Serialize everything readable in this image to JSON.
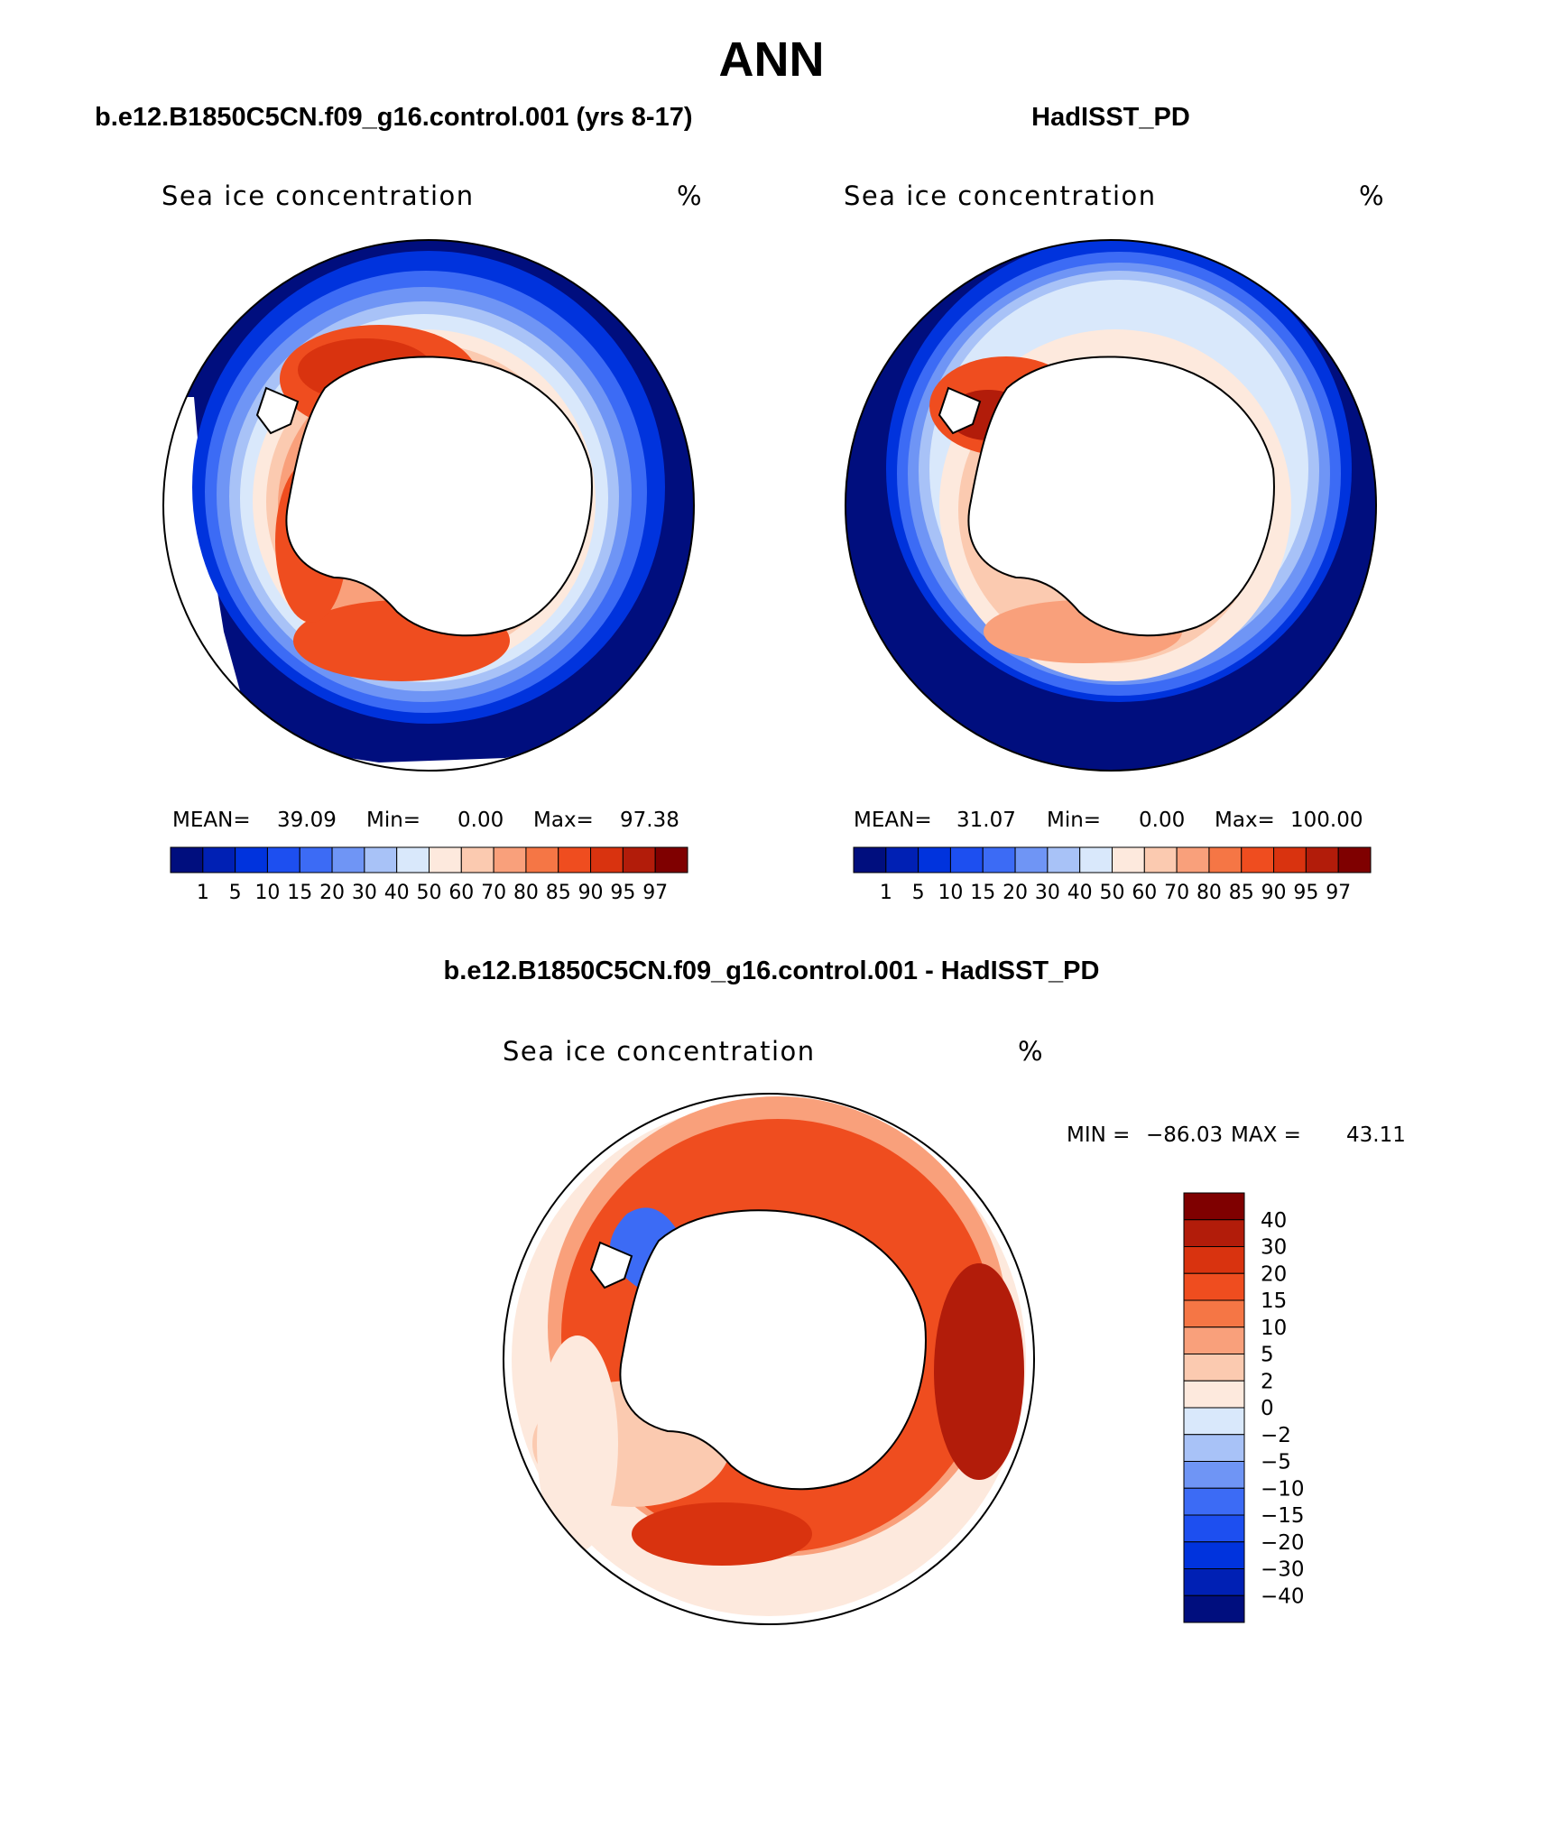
{
  "page_title": "ANN",
  "panels": [
    {
      "id": "model",
      "header": "b.e12.B1850C5CN.f09_g16.control.001 (yrs 8-17)",
      "plot_title": "Sea ice concentration",
      "units": "%",
      "stats": {
        "mean_label": "MEAN=",
        "mean": "39.09",
        "min_label": "Min=",
        "min": "0.00",
        "max_label": "Max=",
        "max": "97.38"
      }
    },
    {
      "id": "obs",
      "header": "HadISST_PD",
      "plot_title": "Sea ice concentration",
      "units": "%",
      "stats": {
        "mean_label": "MEAN=",
        "mean": "31.07",
        "min_label": "Min=",
        "min": "0.00",
        "max_label": "Max=",
        "max": "100.00"
      }
    },
    {
      "id": "diff",
      "header": "b.e12.B1850C5CN.f09_g16.control.001 - HadISST_PD",
      "plot_title": "Sea ice concentration",
      "units": "%",
      "stats": {
        "min_label": "MIN =",
        "min": "−86.03",
        "max_label": "MAX =",
        "max": "43.11"
      }
    }
  ],
  "colorbars": {
    "concentration": {
      "levels": [
        "1",
        "5",
        "10",
        "15",
        "20",
        "30",
        "40",
        "50",
        "60",
        "70",
        "80",
        "85",
        "90",
        "95",
        "97"
      ],
      "colors": [
        "#000e7e",
        "#0020b4",
        "#0033dd",
        "#1d4ff0",
        "#3c6bf5",
        "#6f95f5",
        "#a8c2f7",
        "#d9e8fb",
        "#fde9dd",
        "#fbcab0",
        "#f9a07b",
        "#f57645",
        "#ef4d1f",
        "#d9330f",
        "#b21c0a",
        "#7f0000"
      ]
    },
    "difference": {
      "levels": [
        "40",
        "30",
        "20",
        "15",
        "10",
        "5",
        "2",
        "0",
        "−2",
        "−5",
        "−10",
        "−15",
        "−20",
        "−30",
        "−40"
      ],
      "colors_top_to_bottom": [
        "#7f0000",
        "#b21c0a",
        "#d9330f",
        "#ef4d1f",
        "#f57645",
        "#f9a07b",
        "#fbcab0",
        "#fde9dd",
        "#d9e8fb",
        "#a8c2f7",
        "#6f95f5",
        "#3c6bf5",
        "#1d4ff0",
        "#0033dd",
        "#0020b4",
        "#000e7e"
      ]
    }
  },
  "chart_data": [
    {
      "type": "heatmap",
      "projection": "south-polar-stereographic",
      "title": "Sea ice concentration",
      "units": "%",
      "summary": {
        "mean": 39.09,
        "min": 0.0,
        "max": 97.38
      },
      "contour_levels": [
        1,
        5,
        10,
        15,
        20,
        30,
        40,
        50,
        60,
        70,
        80,
        85,
        90,
        95,
        97
      ]
    },
    {
      "type": "heatmap",
      "projection": "south-polar-stereographic",
      "title": "Sea ice concentration",
      "units": "%",
      "summary": {
        "mean": 31.07,
        "min": 0.0,
        "max": 100.0
      },
      "contour_levels": [
        1,
        5,
        10,
        15,
        20,
        30,
        40,
        50,
        60,
        70,
        80,
        85,
        90,
        95,
        97
      ]
    },
    {
      "type": "heatmap",
      "projection": "south-polar-stereographic",
      "title": "Sea ice concentration",
      "units": "%",
      "summary": {
        "min": -86.03,
        "max": 43.11
      },
      "contour_levels": [
        -40,
        -30,
        -20,
        -15,
        -10,
        -5,
        -2,
        0,
        2,
        5,
        10,
        15,
        20,
        30,
        40
      ]
    }
  ]
}
